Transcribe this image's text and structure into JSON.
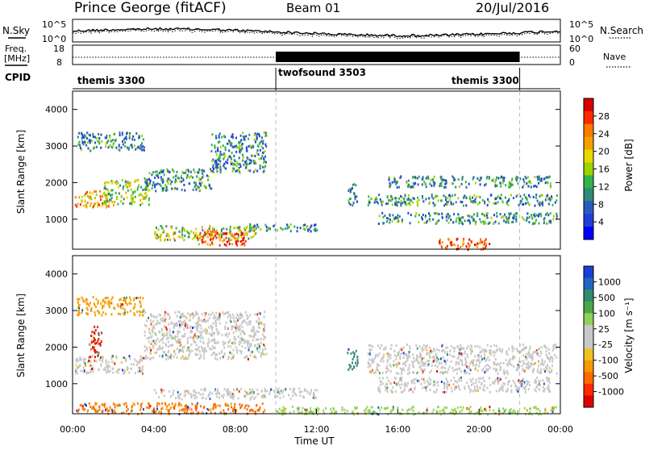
{
  "header": {
    "radar": "Prince George (fitACF)",
    "beam": "Beam 01",
    "date": "20/Jul/2016"
  },
  "strips": {
    "noise_left_label": "N.Sky",
    "noise_right_label": "N.Search",
    "noise_ticks_left": [
      "10^5",
      "10^0"
    ],
    "noise_ticks_right": [
      "10^5",
      "10^0"
    ],
    "freq_label_1": "Freq.",
    "freq_label_2": "[MHz]",
    "freq_ticks": [
      "18",
      "8"
    ],
    "nave_label": "Nave",
    "nave_ticks": [
      "60",
      "0"
    ],
    "cpid_label": "CPID",
    "cpid_segments": [
      {
        "name": "themis 3300",
        "start_hr": 0,
        "end_hr": 10
      },
      {
        "name": "twofsound 3503",
        "start_hr": 10,
        "end_hr": 22
      },
      {
        "name": "themis 3300",
        "start_hr": 22,
        "end_hr": 24
      }
    ],
    "nave_block": {
      "start_hr": 10,
      "end_hr": 22
    }
  },
  "chart_data": [
    {
      "type": "heatmap",
      "name": "power",
      "ylabel": "Slant Range [km]",
      "xlim": [
        0,
        24
      ],
      "ylim": [
        180,
        4500
      ],
      "yticks": [
        1000,
        2000,
        3000,
        4000
      ],
      "colorbar_label": "Power [dB]",
      "colorbar_ticks": [
        "28",
        "24",
        "20",
        "16",
        "12",
        "8",
        "4"
      ],
      "colorbar_colors": [
        "#d80000",
        "#ff2a00",
        "#ff7a00",
        "#f5a000",
        "#e8d800",
        "#9bd400",
        "#33b24a",
        "#2f8a7a",
        "#2a5cc0",
        "#1f3fd8",
        "#0000ff"
      ],
      "regions": [
        {
          "t0": 0.1,
          "t1": 1.8,
          "r0": 1350,
          "r1": 1800,
          "level": 3
        },
        {
          "t0": 1.5,
          "t1": 3.8,
          "r0": 1400,
          "r1": 2100,
          "level": 2
        },
        {
          "t0": 0.2,
          "t1": 3.5,
          "r0": 2900,
          "r1": 3400,
          "level": 1
        },
        {
          "t0": 3.5,
          "t1": 6.8,
          "r0": 1800,
          "r1": 2400,
          "level": 1
        },
        {
          "t0": 6.8,
          "t1": 9.5,
          "r0": 2300,
          "r1": 3400,
          "level": 1
        },
        {
          "t0": 4.0,
          "t1": 9.0,
          "r0": 450,
          "r1": 850,
          "level": 2
        },
        {
          "t0": 6.0,
          "t1": 8.5,
          "r0": 300,
          "r1": 700,
          "level": 4
        },
        {
          "t0": 8.5,
          "t1": 12.0,
          "r0": 700,
          "r1": 900,
          "level": 1
        },
        {
          "t0": 13.5,
          "t1": 14.0,
          "r0": 1400,
          "r1": 2000,
          "level": 1
        },
        {
          "t0": 14.5,
          "t1": 23.8,
          "r0": 1400,
          "r1": 1700,
          "level": 1
        },
        {
          "t0": 15.0,
          "t1": 23.8,
          "r0": 900,
          "r1": 1200,
          "level": 1
        },
        {
          "t0": 15.5,
          "t1": 23.5,
          "r0": 1900,
          "r1": 2200,
          "level": 1
        },
        {
          "t0": 18.0,
          "t1": 20.5,
          "r0": 200,
          "r1": 500,
          "level": 4
        }
      ]
    },
    {
      "type": "heatmap",
      "name": "velocity",
      "ylabel": "Slant Range [km]",
      "xlabel": "Time UT",
      "xlim": [
        0,
        24
      ],
      "ylim": [
        180,
        4500
      ],
      "xticks": [
        "00:00",
        "04:00",
        "08:00",
        "12:00",
        "16:00",
        "20:00",
        "00:00"
      ],
      "yticks": [
        1000,
        2000,
        3000,
        4000
      ],
      "colorbar_label": "Velocity [m s⁻¹]",
      "colorbar_ticks": [
        "1000",
        "500",
        "100",
        "25",
        "-25",
        "-100",
        "-500",
        "-1000"
      ],
      "colorbar_colors": [
        "#1b3fd8",
        "#2266c4",
        "#338a6e",
        "#4aa84a",
        "#8fd05a",
        "#c8c8c8",
        "#c8c8c8",
        "#f0c020",
        "#f59a00",
        "#ff6a00",
        "#ff2a00",
        "#e00000"
      ],
      "regions": [
        {
          "t0": 0.1,
          "t1": 3.5,
          "r0": 1300,
          "r1": 1800,
          "color": "#c8c8c8"
        },
        {
          "t0": 3.5,
          "t1": 9.5,
          "r0": 1700,
          "r1": 3000,
          "color": "#c8c8c8"
        },
        {
          "t0": 0.2,
          "t1": 3.5,
          "r0": 2900,
          "r1": 3400,
          "color": "#f5a000"
        },
        {
          "t0": 0.8,
          "t1": 1.4,
          "r0": 1700,
          "r1": 2600,
          "color": "#e02000"
        },
        {
          "t0": 0.1,
          "t1": 5.5,
          "r0": 200,
          "r1": 500,
          "color": "#ff7a00"
        },
        {
          "t0": 5.5,
          "t1": 9.5,
          "r0": 200,
          "r1": 500,
          "color": "#ff6a00"
        },
        {
          "t0": 4.0,
          "t1": 12.0,
          "r0": 600,
          "r1": 900,
          "color": "#c8c8c8"
        },
        {
          "t0": 13.5,
          "t1": 14.0,
          "r0": 1400,
          "r1": 2000,
          "color": "#3c8a7a"
        },
        {
          "t0": 14.5,
          "t1": 23.8,
          "r0": 1300,
          "r1": 2100,
          "color": "#c8c8c8"
        },
        {
          "t0": 15.0,
          "t1": 23.5,
          "r0": 800,
          "r1": 1200,
          "color": "#c8c8c8"
        },
        {
          "t0": 10.0,
          "t1": 23.8,
          "r0": 190,
          "r1": 400,
          "color": "#9bd45a"
        }
      ]
    }
  ]
}
